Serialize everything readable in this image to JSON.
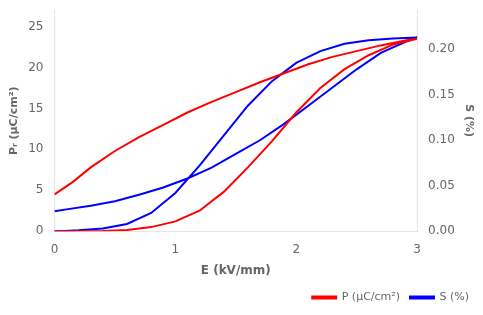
{
  "chart_data": {
    "type": "line",
    "xlabel": "E (kV/mm)",
    "ylabel": "Pᵣ (μC/cm²)",
    "y2label": "S (%)",
    "xlim": [
      0,
      3.0
    ],
    "xticks": [
      0,
      1,
      2,
      3
    ],
    "ylim": [
      0,
      27
    ],
    "yticks": [
      0,
      5,
      10,
      15,
      20,
      25
    ],
    "y2lim": [
      0,
      0.243
    ],
    "y2ticks": [
      {
        "value": 0.0,
        "label": "0.00"
      },
      {
        "value": 0.05,
        "label": "0.05"
      },
      {
        "value": 0.1,
        "label": "0.10"
      },
      {
        "value": 0.15,
        "label": "0.15"
      },
      {
        "value": 0.2,
        "label": "0.20"
      }
    ],
    "legend": "lower right",
    "grid": false,
    "series": [
      {
        "name": "P (μC/cm²)",
        "color": "red",
        "x": [
          0.0,
          0.15,
          0.3,
          0.5,
          0.7,
          0.9,
          1.1,
          1.3,
          1.5,
          1.7,
          1.9,
          2.1,
          2.3,
          2.5,
          2.7,
          2.9,
          3.0,
          3.0,
          2.8,
          2.6,
          2.4,
          2.2,
          2.0,
          1.8,
          1.6,
          1.4,
          1.2,
          1.0,
          0.8,
          0.6,
          0.4,
          0.2,
          0.05,
          0.0
        ],
        "values": [
          4.5,
          6.0,
          7.8,
          9.8,
          11.5,
          13.0,
          14.5,
          15.8,
          17.0,
          18.2,
          19.3,
          20.4,
          21.3,
          22.0,
          22.7,
          23.3,
          23.5,
          23.5,
          22.8,
          21.5,
          19.8,
          17.5,
          14.5,
          11.0,
          7.8,
          4.8,
          2.5,
          1.2,
          0.5,
          0.15,
          0.02,
          0.0,
          0.0,
          0.0
        ]
      },
      {
        "name": "S (%)",
        "color": "blue",
        "axis": "y2",
        "x": [
          0.0,
          0.1,
          0.3,
          0.5,
          0.7,
          0.9,
          1.1,
          1.3,
          1.5,
          1.7,
          1.9,
          2.1,
          2.3,
          2.5,
          2.7,
          2.9,
          3.0,
          3.0,
          2.8,
          2.6,
          2.4,
          2.2,
          2.0,
          1.8,
          1.6,
          1.4,
          1.2,
          1.0,
          0.8,
          0.6,
          0.4,
          0.2,
          0.05,
          0.0
        ],
        "values": [
          0.022,
          0.024,
          0.028,
          0.033,
          0.04,
          0.048,
          0.058,
          0.07,
          0.085,
          0.1,
          0.118,
          0.138,
          0.158,
          0.178,
          0.196,
          0.208,
          0.213,
          0.213,
          0.212,
          0.21,
          0.206,
          0.198,
          0.185,
          0.165,
          0.138,
          0.105,
          0.072,
          0.042,
          0.02,
          0.008,
          0.003,
          0.001,
          0.0,
          0.0
        ]
      }
    ]
  }
}
